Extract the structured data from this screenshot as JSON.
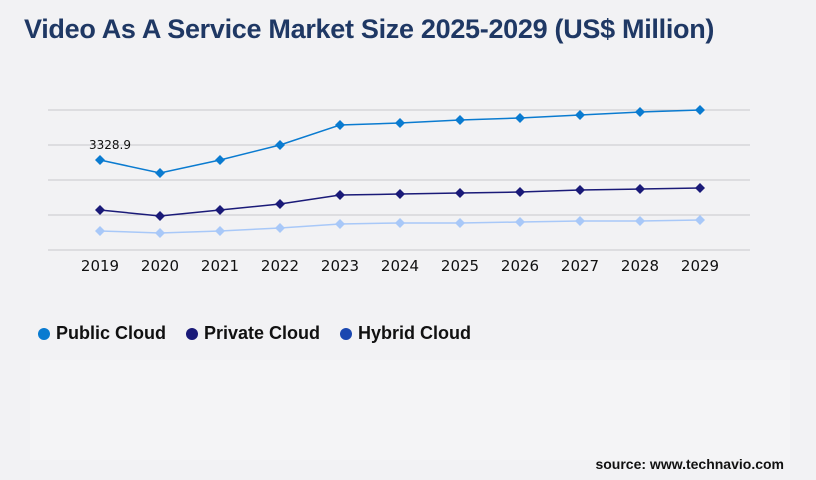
{
  "title": "Video As A Service Market Size 2025-2029 (US$ Million)",
  "source": "source: www.technavio.com",
  "chart_data": {
    "type": "line",
    "title": "Video As A Service Market Size 2025-2029 (US$ Million)",
    "x": [
      "2019",
      "2020",
      "2021",
      "2022",
      "2023",
      "2024",
      "2025",
      "2026",
      "2027",
      "2028",
      "2029"
    ],
    "ylim": [
      0,
      5179
    ],
    "grid": true,
    "legend_placement": "bottom-left",
    "data_labels": [
      {
        "series": "Public Cloud",
        "x": "2019",
        "text": "3328.9"
      }
    ],
    "series": [
      {
        "name": "Public Cloud",
        "color": "#0a7bd0",
        "legend_color": "#0a7bd0",
        "values": [
          3329,
          2848,
          3329,
          3884,
          4624,
          4698,
          4809,
          4883,
          4994,
          5105,
          5179
        ]
      },
      {
        "name": "Private Cloud",
        "color": "#1a1a78",
        "legend_color": "#1a1a78",
        "values": [
          1480,
          1258,
          1480,
          1702,
          2034,
          2071,
          2108,
          2145,
          2219,
          2256,
          2293
        ]
      },
      {
        "name": "Hybrid Cloud",
        "color": "#a8c8f8",
        "legend_color": "#1a47b0",
        "values": [
          703,
          629,
          703,
          814,
          962,
          999,
          999,
          1036,
          1073,
          1073,
          1110
        ]
      }
    ]
  }
}
